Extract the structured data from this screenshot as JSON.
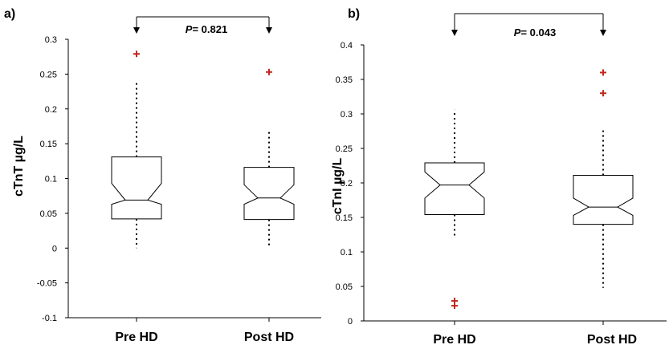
{
  "chart_data": [
    {
      "type": "boxplot",
      "panel_label": "a)",
      "ylabel": "cTnT µg/L",
      "ylim": [
        -0.1,
        0.3
      ],
      "yticks": [
        "0.3",
        "0.25",
        "0.2",
        "0.15",
        "0.1",
        "0.05",
        "0",
        "-0.05",
        "-0.1"
      ],
      "categories": [
        "Pre HD",
        "Post HD"
      ],
      "boxes": [
        {
          "name": "Pre HD",
          "whisker_low": 0.0,
          "q1": 0.042,
          "median": 0.069,
          "q3": 0.131,
          "whisker_high": 0.237,
          "notch_low": 0.063,
          "notch_high": 0.093,
          "outliers": [
            0.279
          ]
        },
        {
          "name": "Post HD",
          "whisker_low": 0.0,
          "q1": 0.041,
          "median": 0.072,
          "q3": 0.116,
          "whisker_high": 0.167,
          "notch_low": 0.063,
          "notch_high": 0.091,
          "outliers": [
            0.253
          ]
        }
      ],
      "comparison": {
        "p_label": "P",
        "p_value": "= 0.821"
      }
    },
    {
      "type": "boxplot",
      "panel_label": "b)",
      "ylabel": "cTnI µg/L",
      "ylim": [
        0,
        0.4
      ],
      "yticks": [
        "0.4",
        "0.35",
        "0.3",
        "0.25",
        "0.2",
        "0.15",
        "0.1",
        "0.05",
        "0"
      ],
      "categories": [
        "Pre HD",
        "Post HD"
      ],
      "boxes": [
        {
          "name": "Pre HD",
          "whisker_low": 0.123,
          "q1": 0.154,
          "median": 0.197,
          "q3": 0.229,
          "whisker_high": 0.306,
          "notch_low": 0.178,
          "notch_high": 0.216,
          "outliers": [
            0.029,
            0.022
          ]
        },
        {
          "name": "Post HD",
          "whisker_low": 0.048,
          "q1": 0.14,
          "median": 0.165,
          "q3": 0.211,
          "whisker_high": 0.276,
          "notch_low": 0.153,
          "notch_high": 0.178,
          "outliers": [
            0.36,
            0.33
          ]
        }
      ],
      "comparison": {
        "p_label": "P",
        "p_value": "= 0.043"
      }
    }
  ],
  "colors": {
    "outlier": "#c0281e",
    "line": "#000000"
  }
}
